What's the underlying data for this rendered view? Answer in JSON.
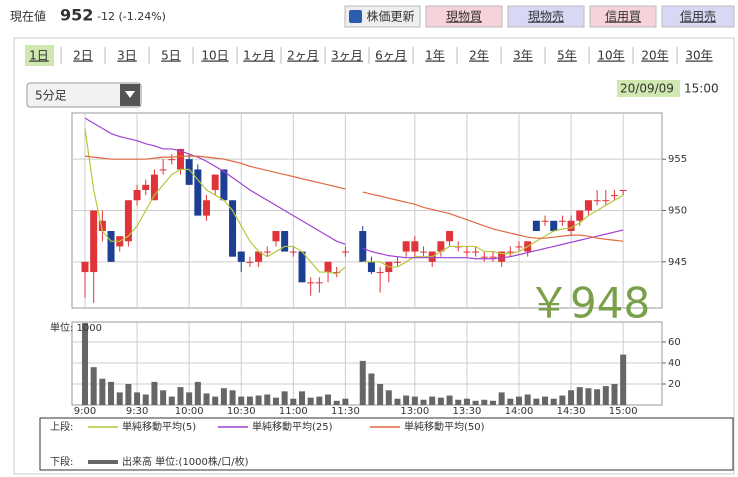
{
  "header": {
    "label": "現在値",
    "price": "952",
    "change": "-12 (-1.24%)",
    "buttons": [
      "株価更新",
      "現物買",
      "現物売",
      "信用買",
      "信用売"
    ]
  },
  "tabs": [
    "1日",
    "2日",
    "3日",
    "5日",
    "10日",
    "1ヶ月",
    "2ヶ月",
    "3ヶ月",
    "6ヶ月",
    "1年",
    "2年",
    "3年",
    "5年",
    "10年",
    "20年",
    "30年"
  ],
  "dropdown": "5分足",
  "timestamp": {
    "date": "20/09/09",
    "time": "15:00"
  },
  "chart_data": [
    {
      "type": "candlestick",
      "legend_label": "上段:",
      "annotation": "￥948",
      "up_color": "#e0333a",
      "down_color": "#1c3f94",
      "open": [
        944,
        944,
        948,
        948,
        946.5,
        947,
        951,
        952,
        951,
        954,
        955,
        954,
        955,
        954,
        949.5,
        952,
        954,
        951,
        946,
        945,
        945,
        946,
        947,
        948,
        946,
        946,
        943,
        943,
        944,
        944,
        946,
        null,
        948,
        945,
        944,
        944,
        945,
        946,
        946,
        946,
        945,
        946,
        947,
        946.5,
        946,
        946,
        945.5,
        945.5,
        945,
        946,
        946.5,
        946,
        949,
        949,
        949,
        949,
        948,
        949,
        950,
        951,
        951,
        951.5,
        952
      ],
      "high": [
        945,
        950,
        950,
        948,
        947.5,
        951,
        952.5,
        953,
        954,
        955,
        955.5,
        956,
        955.5,
        954.5,
        951.5,
        953.5,
        954,
        951,
        946,
        945.5,
        946,
        946.5,
        948,
        948,
        946.5,
        946,
        943.5,
        943.5,
        945,
        944.5,
        946.5,
        null,
        948.5,
        945.5,
        944.5,
        945,
        945.5,
        947,
        947.5,
        946.5,
        946,
        947,
        948,
        947,
        946.5,
        946.5,
        946,
        946,
        946,
        946.5,
        947,
        947,
        949,
        949.5,
        949,
        949.5,
        949.5,
        950,
        951,
        952,
        952,
        952,
        952
      ],
      "low": [
        941.5,
        941,
        947,
        945,
        946,
        946.5,
        950.5,
        951.5,
        951,
        953.5,
        954.5,
        953.5,
        952.5,
        949.5,
        949,
        951.5,
        951,
        945.5,
        944,
        944.5,
        944.5,
        945.5,
        946.5,
        946,
        945.5,
        943,
        941.7,
        942,
        943,
        943.5,
        945.5,
        null,
        945,
        943.8,
        942,
        943,
        944.5,
        945.5,
        945.5,
        945.5,
        944.5,
        945.5,
        946.5,
        946,
        945.5,
        945.5,
        945,
        945,
        944.5,
        945.5,
        946,
        945.5,
        948,
        948.5,
        948,
        948.5,
        947.5,
        948.5,
        949.5,
        950.5,
        950.5,
        951,
        951.5
      ],
      "close": [
        945,
        950,
        949,
        945,
        947.5,
        951,
        952,
        952.5,
        953.5,
        954,
        955,
        956,
        952.5,
        949.5,
        951,
        953.5,
        951,
        945.5,
        945,
        945,
        946,
        946,
        948,
        946,
        946,
        943,
        943,
        943,
        945,
        944,
        946,
        null,
        945,
        944,
        944,
        945,
        945,
        947,
        947,
        946,
        946,
        947,
        948,
        946.5,
        946,
        946,
        945.5,
        945.5,
        946,
        946,
        946.5,
        947,
        948,
        949,
        948,
        949,
        949,
        950,
        951,
        951,
        951,
        951.5,
        952
      ],
      "series": [
        {
          "name": "単純移動平均(5)",
          "color": "#b5c93a",
          "values": [
            958,
            952,
            948,
            947,
            947,
            947.5,
            948.5,
            950,
            951.5,
            952.5,
            953.5,
            954,
            954,
            953,
            952,
            951.5,
            951,
            950,
            948.5,
            947,
            946,
            945.5,
            946,
            946.5,
            946.5,
            946,
            945,
            944,
            944,
            943.8,
            944.5,
            null,
            945,
            945,
            945,
            944.5,
            944.5,
            945,
            945.5,
            945.5,
            945.5,
            946,
            946.5,
            946.5,
            946.5,
            946.5,
            946,
            946,
            945.8,
            945.8,
            946,
            946.5,
            947,
            947.5,
            948,
            948.2,
            948.3,
            948.8,
            949.5,
            950,
            950.5,
            951,
            951.5
          ]
        },
        {
          "name": "単純移動平均(25)",
          "color": "#a040d0",
          "values": [
            959,
            958.5,
            958,
            957.5,
            957.2,
            957,
            956.8,
            956.5,
            956.3,
            956,
            956,
            955.8,
            955.5,
            955.2,
            954.8,
            954.3,
            953.8,
            953.2,
            952.6,
            952,
            951.5,
            951,
            950.5,
            950,
            949.5,
            949,
            948.5,
            948,
            947.5,
            947,
            946.7,
            null,
            946.3,
            946,
            945.8,
            945.6,
            945.5,
            945.4,
            945.4,
            945.4,
            945.4,
            945.4,
            945.4,
            945.4,
            945.4,
            945.3,
            945.3,
            945.3,
            945.4,
            945.5,
            945.7,
            945.9,
            946.1,
            946.3,
            946.5,
            946.7,
            946.9,
            947.1,
            947.3,
            947.5,
            947.7,
            947.9,
            948.1
          ]
        },
        {
          "name": "単純移動平均(50)",
          "color": "#e06a40",
          "values": [
            955.3,
            955.2,
            955.1,
            955,
            955,
            955,
            955,
            955,
            955.1,
            955.2,
            955.2,
            955.3,
            955.3,
            955.3,
            955.2,
            955.1,
            955,
            954.8,
            954.6,
            954.3,
            954.1,
            953.9,
            953.7,
            953.5,
            953.3,
            953.1,
            952.9,
            952.7,
            952.5,
            952.3,
            952.1,
            null,
            951.8,
            951.6,
            951.4,
            951.2,
            951,
            950.8,
            950.6,
            950.3,
            950.1,
            949.9,
            949.7,
            949.4,
            949.1,
            948.8,
            948.5,
            948.2,
            948,
            947.8,
            947.6,
            947.4,
            947.3,
            947.3,
            947.4,
            947.5,
            947.6,
            947.6,
            947.5,
            947.3,
            947.2,
            947.1,
            947
          ]
        }
      ],
      "ylim": [
        940.5,
        959.5
      ],
      "yticks": [
        945,
        950,
        955
      ],
      "grid": true
    },
    {
      "type": "bar",
      "y_label": "単位: 1000",
      "legend_label": "下段:",
      "series": [
        {
          "name": "出来高 単位:(1000株/口/枚)",
          "color": "#666666",
          "values": [
            78,
            36,
            25,
            22,
            12,
            20,
            12,
            10,
            22,
            14,
            8,
            17,
            12,
            22,
            11,
            8,
            16,
            14,
            8,
            8,
            9,
            10,
            7,
            13,
            6,
            13,
            7,
            8,
            10,
            4,
            6,
            null,
            42,
            30,
            20,
            14,
            6,
            9,
            8,
            5,
            8,
            7,
            9,
            5,
            6,
            4,
            5,
            4,
            12,
            6,
            8,
            10,
            6,
            8,
            6,
            9,
            14,
            17,
            16,
            15,
            18,
            20,
            48
          ]
        }
      ],
      "categories": [
        "9:00",
        null,
        null,
        null,
        null,
        null,
        "9:30",
        null,
        null,
        null,
        null,
        null,
        "10:00",
        null,
        null,
        null,
        null,
        null,
        "10:30",
        null,
        null,
        null,
        null,
        null,
        "11:00",
        null,
        null,
        null,
        null,
        null,
        "11:30",
        null,
        null,
        null,
        null,
        null,
        null,
        null,
        "13:00",
        null,
        null,
        null,
        null,
        null,
        "13:30",
        null,
        null,
        null,
        null,
        null,
        "14:00",
        null,
        null,
        null,
        null,
        null,
        "14:30",
        null,
        null,
        null,
        null,
        null,
        "15:00"
      ],
      "ylim": [
        0,
        79
      ],
      "yticks": [
        20,
        40,
        60
      ],
      "grid": true
    }
  ]
}
